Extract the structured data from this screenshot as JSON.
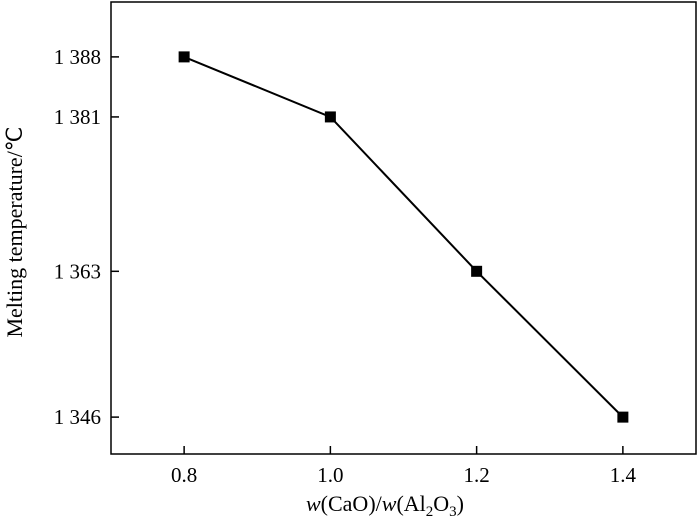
{
  "chart_data": {
    "type": "line",
    "title": "",
    "xlabel": {
      "prefix_var": "w",
      "part1": "(CaO)/",
      "var2": "w",
      "part2": "(Al",
      "sub1": "2",
      "part3": "O",
      "sub2": "3",
      "part4": ")"
    },
    "ylabel": "Melting temperature/℃",
    "xlim": [
      0.7,
      1.5
    ],
    "ylim": [
      1341.7,
      1394.4
    ],
    "x_ticks": [
      0.8,
      1.0,
      1.2,
      1.4
    ],
    "x_tick_labels": [
      "0.8",
      "1.0",
      "1.2",
      "1.4"
    ],
    "y_ticks": [
      1346,
      1363,
      1381,
      1388
    ],
    "y_tick_labels": [
      "1 346",
      "1 363",
      "1 381",
      "1 388"
    ],
    "grid": false,
    "marker": "square",
    "line_color": "#000000",
    "series": [
      {
        "x": [
          0.8,
          1.0,
          1.2,
          1.4
        ],
        "values": [
          1388,
          1381,
          1363,
          1346
        ]
      }
    ]
  }
}
